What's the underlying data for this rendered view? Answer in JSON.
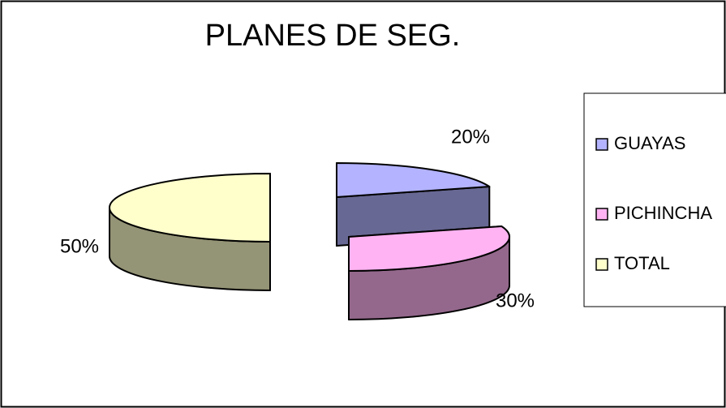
{
  "chart_data": {
    "type": "pie3d",
    "title": "PLANES DE SEG.",
    "categories": [
      "GUAYAS",
      "PICHINCHA",
      "TOTAL"
    ],
    "values": [
      20,
      30,
      50
    ],
    "value_labels": [
      "20%",
      "30%",
      "50%"
    ],
    "colors": [
      "#b3b3ff",
      "#ffb3f2",
      "#ffffcc"
    ],
    "legend": "right"
  }
}
